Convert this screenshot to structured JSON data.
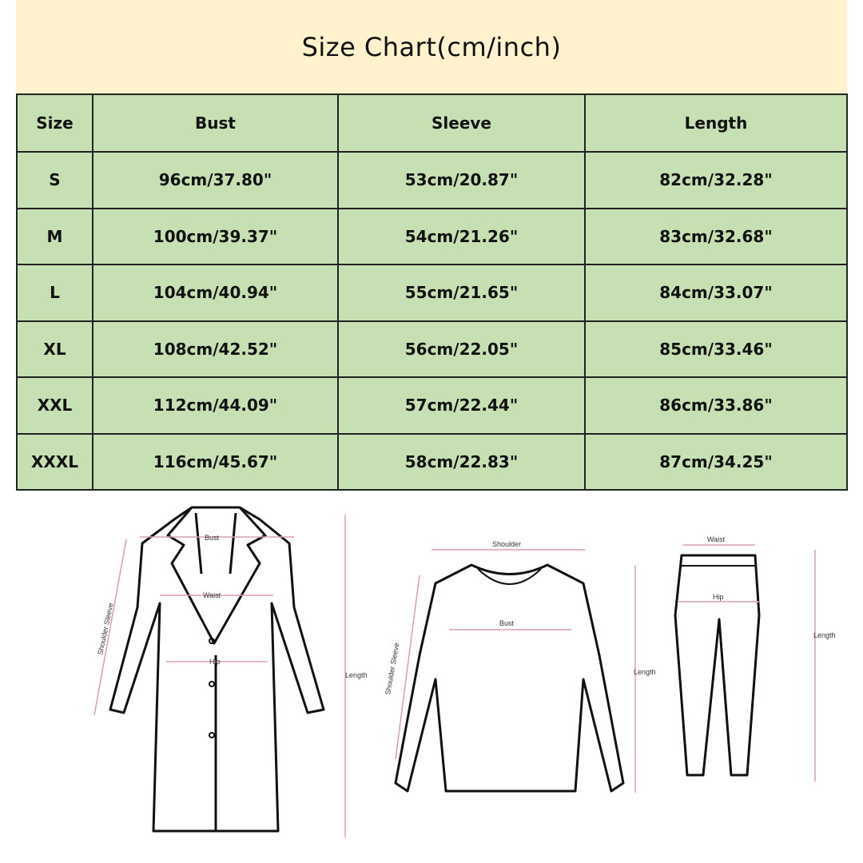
{
  "title": "Size Chart(cm/inch)",
  "table": {
    "headers": [
      "Size",
      "Bust",
      "Sleeve",
      "Length"
    ],
    "rows": [
      [
        "S",
        "96cm/37.80\"",
        "53cm/20.87\"",
        "82cm/32.28\""
      ],
      [
        "M",
        "100cm/39.37\"",
        "54cm/21.26\"",
        "83cm/32.68\""
      ],
      [
        "L",
        "104cm/40.94\"",
        "55cm/21.65\"",
        "84cm/33.07\""
      ],
      [
        "XL",
        "108cm/42.52\"",
        "56cm/22.05\"",
        "85cm/33.46\""
      ],
      [
        "XXL",
        "112cm/44.09\"",
        "57cm/22.44\"",
        "86cm/33.86\""
      ],
      [
        "XXXL",
        "116cm/45.67\"",
        "58cm/22.83\"",
        "87cm/34.25\""
      ]
    ]
  },
  "diagrams": {
    "coat": {
      "bust": "Bust",
      "waist": "Waist",
      "hip": "Hip",
      "sleeve": "Shoulder Sleeve",
      "length": "Length"
    },
    "sweater": {
      "shoulder": "Shoulder",
      "bust": "Bust",
      "sleeve": "Shoulder Sleeve",
      "length": "Length"
    },
    "pants": {
      "waist": "Waist",
      "hip": "Hip",
      "length": "Length"
    }
  },
  "colors": {
    "title_bg": "#fff2cc",
    "table_bg": "#c6e0b4",
    "measure_line": "#d9a0b0"
  }
}
